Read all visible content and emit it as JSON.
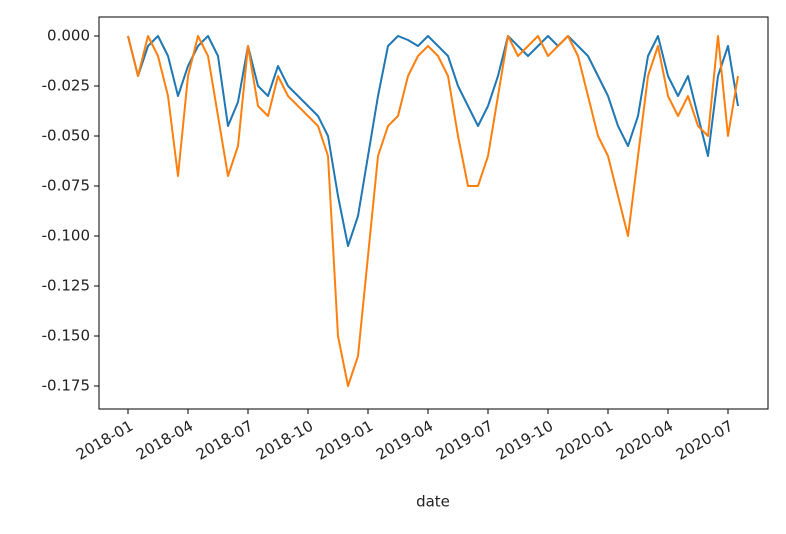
{
  "chart_data": {
    "type": "line",
    "xlabel": "date",
    "x": [
      0,
      0.5,
      1,
      1.5,
      2,
      2.5,
      3,
      3.5,
      4,
      4.5,
      5,
      5.5,
      6,
      6.5,
      7,
      7.5,
      8,
      8.5,
      9,
      9.5,
      10,
      10.5,
      11,
      11.5,
      12,
      12.5,
      13,
      13.5,
      14,
      14.5,
      15,
      15.5,
      16,
      16.5,
      17,
      17.5,
      18,
      18.5,
      19,
      19.5,
      20,
      20.5,
      21,
      21.5,
      22,
      22.5,
      23,
      23.5,
      24,
      24.5,
      25,
      25.5,
      26,
      26.5,
      27,
      27.5,
      28,
      28.5,
      29,
      29.5,
      30,
      30.5
    ],
    "series": [
      {
        "color": "#1f77b4",
        "values": [
          0,
          -0.02,
          -0.005,
          0,
          -0.01,
          -0.03,
          -0.015,
          -0.005,
          0,
          -0.01,
          -0.045,
          -0.033,
          -0.005,
          -0.025,
          -0.03,
          -0.015,
          -0.025,
          -0.03,
          -0.035,
          -0.04,
          -0.05,
          -0.08,
          -0.105,
          -0.09,
          -0.06,
          -0.03,
          -0.005,
          0,
          -0.002,
          -0.005,
          0,
          -0.005,
          -0.01,
          -0.025,
          -0.035,
          -0.045,
          -0.035,
          -0.02,
          0,
          -0.005,
          -0.01,
          -0.005,
          0,
          -0.005,
          0,
          -0.005,
          -0.01,
          -0.02,
          -0.03,
          -0.045,
          -0.055,
          -0.04,
          -0.01,
          0,
          -0.02,
          -0.03,
          -0.02,
          -0.04,
          -0.06,
          -0.02,
          -0.005,
          -0.035
        ]
      },
      {
        "color": "#ff7f0e",
        "values": [
          0,
          -0.02,
          0,
          -0.01,
          -0.03,
          -0.07,
          -0.02,
          0,
          -0.01,
          -0.04,
          -0.07,
          -0.055,
          -0.005,
          -0.035,
          -0.04,
          -0.02,
          -0.03,
          -0.035,
          -0.04,
          -0.045,
          -0.06,
          -0.15,
          -0.175,
          -0.16,
          -0.11,
          -0.06,
          -0.045,
          -0.04,
          -0.02,
          -0.01,
          -0.005,
          -0.01,
          -0.02,
          -0.05,
          -0.075,
          -0.075,
          -0.06,
          -0.03,
          0,
          -0.01,
          -0.005,
          0,
          -0.01,
          -0.005,
          0,
          -0.01,
          -0.03,
          -0.05,
          -0.06,
          -0.08,
          -0.1,
          -0.06,
          -0.02,
          -0.005,
          -0.03,
          -0.04,
          -0.03,
          -0.045,
          -0.05,
          0,
          -0.05,
          -0.02
        ]
      }
    ],
    "xlim": [
      -1.45,
      32.0
    ],
    "xticks": [
      {
        "value": 0,
        "label": "2018-01"
      },
      {
        "value": 3,
        "label": "2018-04"
      },
      {
        "value": 6,
        "label": "2018-07"
      },
      {
        "value": 9,
        "label": "2018-10"
      },
      {
        "value": 12,
        "label": "2019-01"
      },
      {
        "value": 15,
        "label": "2019-04"
      },
      {
        "value": 18,
        "label": "2019-07"
      },
      {
        "value": 21,
        "label": "2019-10"
      },
      {
        "value": 24,
        "label": "2020-01"
      },
      {
        "value": 27,
        "label": "2020-04"
      },
      {
        "value": 30,
        "label": "2020-07"
      }
    ],
    "ylim": [
      -0.1865,
      0.0095
    ],
    "yticks": [
      {
        "value": 0,
        "label": "0.000"
      },
      {
        "value": -0.025,
        "label": "-0.025"
      },
      {
        "value": -0.05,
        "label": "-0.050"
      },
      {
        "value": -0.075,
        "label": "-0.075"
      },
      {
        "value": -0.1,
        "label": "-0.100"
      },
      {
        "value": -0.125,
        "label": "-0.125"
      },
      {
        "value": -0.15,
        "label": "-0.150"
      },
      {
        "value": -0.175,
        "label": "-0.175"
      }
    ],
    "grid": false
  }
}
